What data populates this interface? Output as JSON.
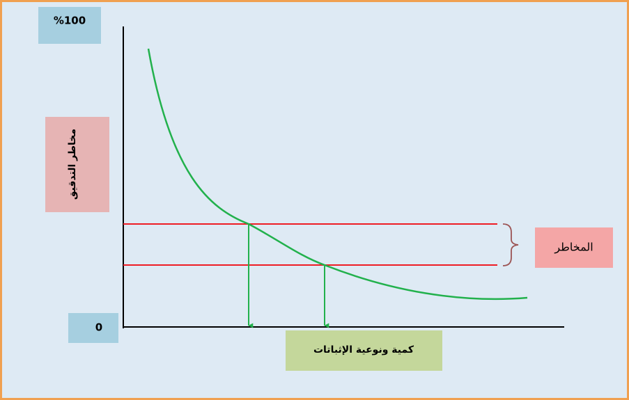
{
  "labels": {
    "top": "%100",
    "origin": "0",
    "y_axis": "مخاطر التدقيق",
    "risk": "المخاطر",
    "x_axis": "كمية ونوعية الإثباتات"
  }
}
